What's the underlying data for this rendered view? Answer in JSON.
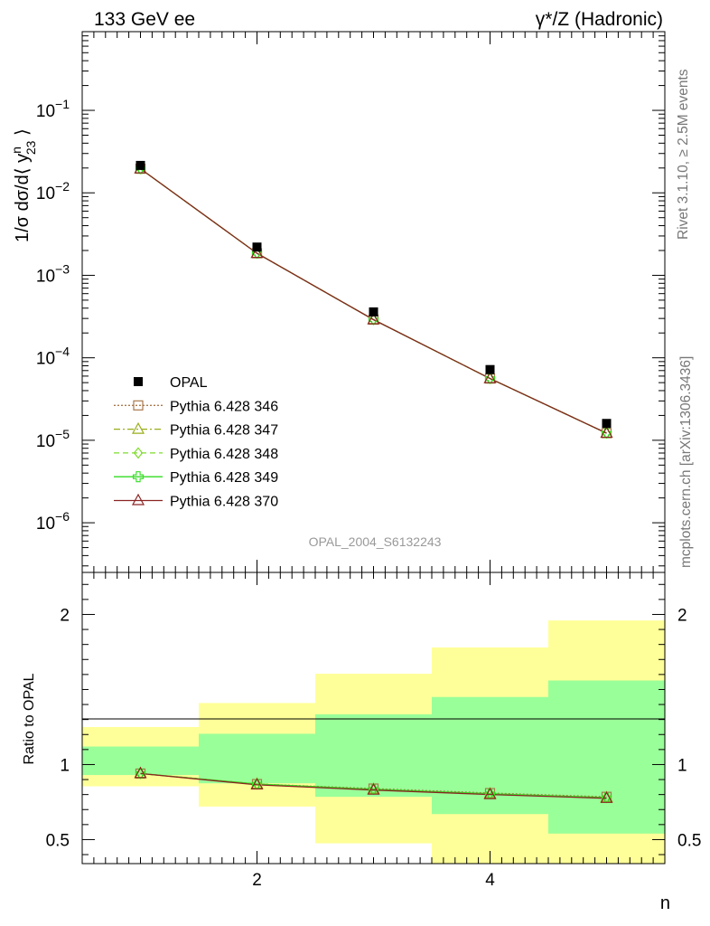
{
  "header": {
    "energy_label": "133 GeV ee",
    "process_label_main": "γ*/Z",
    "process_label_suffix": "(Hadronic)"
  },
  "side_text": {
    "rivet": "Rivet 3.1.10, ≥ 2.5M events",
    "mcplots": "mcplots.cern.ch [arXiv:1306.3436]"
  },
  "analysis_id": "OPAL_2004_S6132243",
  "colors": {
    "data": "#000000",
    "p346": "#a9794d",
    "p347": "#9aae1a",
    "p348": "#7fdc2f",
    "p349": "#33dd22",
    "p370": "#8b2424",
    "band_inner": "#99ff99",
    "band_outer": "#ffff99"
  },
  "chart_data": [
    {
      "type": "scatter",
      "panel": "main",
      "yscale": "log",
      "ylabel": "1/σ dσ/d⟨ y",
      "ylabel_sup": "n",
      "ylabel_sub": "23",
      "ylabel_end": " ⟩",
      "xlim": [
        0.5,
        5.5
      ],
      "ylim": [
        2.5e-07,
        0.9
      ],
      "y_tick_labels": [
        {
          "value": 0.1,
          "base": "10",
          "exp": "−1"
        },
        {
          "value": 0.01,
          "base": "10",
          "exp": "−2"
        },
        {
          "value": 0.001,
          "base": "10",
          "exp": "−3"
        },
        {
          "value": 0.0001,
          "base": "10",
          "exp": "−4"
        },
        {
          "value": 1e-05,
          "base": "10",
          "exp": "−5"
        },
        {
          "value": 1e-06,
          "base": "10",
          "exp": "−6"
        }
      ],
      "x": [
        1,
        2,
        3,
        4,
        5
      ],
      "data": {
        "name": "OPAL",
        "values": [
          0.0215,
          0.0022,
          0.00036,
          7.2e-05,
          1.6e-05
        ]
      },
      "series": [
        {
          "name": "Pythia 6.428 346",
          "key": "p346",
          "marker": "square",
          "dash": "2,2",
          "values": [
            0.0196,
            0.00185,
            0.00029,
            5.6e-05,
            1.22e-05
          ]
        },
        {
          "name": "Pythia 6.428 347",
          "key": "p347",
          "marker": "triangle",
          "dash": "7,3,2,3",
          "values": [
            0.0196,
            0.00185,
            0.00029,
            5.6e-05,
            1.22e-05
          ]
        },
        {
          "name": "Pythia 6.428 348",
          "key": "p348",
          "marker": "diamond",
          "dash": "6,4",
          "values": [
            0.0196,
            0.00185,
            0.00029,
            5.6e-05,
            1.22e-05
          ]
        },
        {
          "name": "Pythia 6.428 349",
          "key": "p349",
          "marker": "cross",
          "dash": "",
          "values": [
            0.0196,
            0.00185,
            0.00029,
            5.6e-05,
            1.22e-05
          ]
        },
        {
          "name": "Pythia 6.428 370",
          "key": "p370",
          "marker": "triangle",
          "dash": "",
          "values": [
            0.0196,
            0.00185,
            0.00029,
            5.6e-05,
            1.22e-05
          ]
        }
      ]
    },
    {
      "type": "line",
      "panel": "ratio",
      "ylabel": "Ratio to OPAL",
      "xlabel": "n",
      "xlim": [
        0.5,
        5.5
      ],
      "ylim": [
        0.34,
        2.28
      ],
      "x_ticks": [
        2,
        4
      ],
      "y_ticks": [
        0.5,
        1,
        2
      ],
      "y_tick_labels": [
        "0.5",
        "1",
        "2"
      ],
      "x": [
        1,
        2,
        3,
        4,
        5
      ],
      "bins": [
        [
          0.5,
          1.5
        ],
        [
          1.5,
          2.5
        ],
        [
          2.5,
          3.5
        ],
        [
          3.5,
          4.5
        ],
        [
          4.5,
          5.5
        ]
      ],
      "band_inner": [
        [
          0.93,
          1.12
        ],
        [
          0.875,
          1.205
        ],
        [
          0.785,
          1.335
        ],
        [
          0.67,
          1.45
        ],
        [
          0.54,
          1.56
        ]
      ],
      "band_outer": [
        [
          0.855,
          1.25
        ],
        [
          0.72,
          1.41
        ],
        [
          0.475,
          1.605
        ],
        [
          0.34,
          1.78
        ],
        [
          0.34,
          1.96
        ]
      ],
      "series": [
        {
          "name": "Pythia 6.428 346",
          "key": "p346",
          "marker": "square",
          "dash": "2,2",
          "values": [
            0.94,
            0.87,
            0.84,
            0.81,
            0.785
          ]
        },
        {
          "name": "Pythia 6.428 347",
          "key": "p347",
          "marker": "triangle",
          "dash": "7,3,2,3",
          "values": [
            0.94,
            0.87,
            0.835,
            0.805,
            0.78
          ]
        },
        {
          "name": "Pythia 6.428 348",
          "key": "p348",
          "marker": "diamond",
          "dash": "6,4",
          "values": [
            0.94,
            0.87,
            0.835,
            0.805,
            0.78
          ]
        },
        {
          "name": "Pythia 6.428 349",
          "key": "p349",
          "marker": "cross",
          "dash": "",
          "values": [
            0.94,
            0.87,
            0.835,
            0.805,
            0.78
          ]
        },
        {
          "name": "Pythia 6.428 370",
          "key": "p370",
          "marker": "triangle",
          "dash": "",
          "values": [
            0.94,
            0.865,
            0.83,
            0.8,
            0.775
          ]
        }
      ]
    }
  ]
}
